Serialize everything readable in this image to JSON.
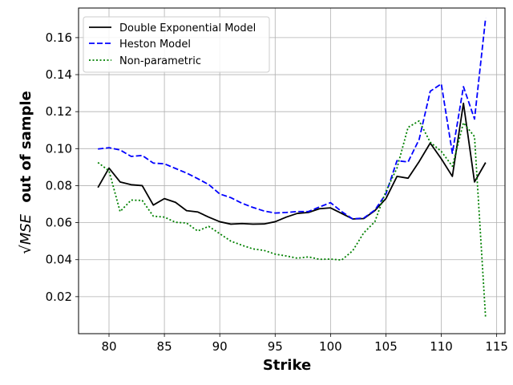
{
  "chart_data": {
    "type": "line",
    "xlabel": "Strike",
    "ylabel": "out of sample",
    "ylabel_math": "√MSE",
    "xlim": [
      77.25,
      115.75
    ],
    "ylim": [
      0.0,
      0.176
    ],
    "xticks": [
      80,
      85,
      90,
      95,
      100,
      105,
      110,
      115
    ],
    "yticks": [
      0.02,
      0.04,
      0.06,
      0.08,
      0.1,
      0.12,
      0.14,
      0.16
    ],
    "ytick_labels": [
      "0.02",
      "0.04",
      "0.06",
      "0.08",
      "0.10",
      "0.12",
      "0.14",
      "0.16"
    ],
    "grid": true,
    "legend_position": "top-left",
    "x": [
      79,
      80,
      81,
      82,
      83,
      84,
      85,
      86,
      87,
      88,
      89,
      90,
      91,
      92,
      93,
      94,
      95,
      96,
      97,
      98,
      99,
      100,
      101,
      102,
      103,
      104,
      105,
      106,
      107,
      108,
      109,
      110,
      111,
      112,
      113,
      114
    ],
    "series": [
      {
        "name": "Double Exponential Model",
        "color": "#000000",
        "style": "solid",
        "values": [
          0.079,
          0.0895,
          0.082,
          0.0805,
          0.08,
          0.0695,
          0.073,
          0.071,
          0.0665,
          0.0658,
          0.063,
          0.0605,
          0.0592,
          0.0595,
          0.0592,
          0.0593,
          0.0605,
          0.063,
          0.065,
          0.0655,
          0.0675,
          0.068,
          0.065,
          0.062,
          0.0622,
          0.0665,
          0.073,
          0.085,
          0.084,
          0.093,
          0.103,
          0.0945,
          0.085,
          0.1245,
          0.082,
          0.0925
        ]
      },
      {
        "name": "Heston Model",
        "color": "#0000ff",
        "style": "dashed",
        "values": [
          0.0998,
          0.1005,
          0.0993,
          0.0958,
          0.0963,
          0.0922,
          0.0918,
          0.0893,
          0.0868,
          0.0838,
          0.0806,
          0.0755,
          0.0735,
          0.0705,
          0.0682,
          0.0663,
          0.0652,
          0.0655,
          0.066,
          0.066,
          0.0685,
          0.0708,
          0.066,
          0.062,
          0.0625,
          0.0668,
          0.0755,
          0.0935,
          0.0928,
          0.105,
          0.131,
          0.135,
          0.0975,
          0.1335,
          0.116,
          0.1705
        ]
      },
      {
        "name": "Non-parametric",
        "color": "#008000",
        "style": "dotted",
        "values": [
          0.0925,
          0.088,
          0.066,
          0.0722,
          0.072,
          0.0635,
          0.063,
          0.0602,
          0.0598,
          0.0555,
          0.058,
          0.054,
          0.05,
          0.0478,
          0.0458,
          0.045,
          0.043,
          0.042,
          0.0408,
          0.0415,
          0.0402,
          0.0403,
          0.0398,
          0.0448,
          0.0545,
          0.0605,
          0.077,
          0.0895,
          0.1115,
          0.115,
          0.1035,
          0.0985,
          0.0905,
          0.114,
          0.1065,
          0.0085
        ]
      }
    ]
  }
}
